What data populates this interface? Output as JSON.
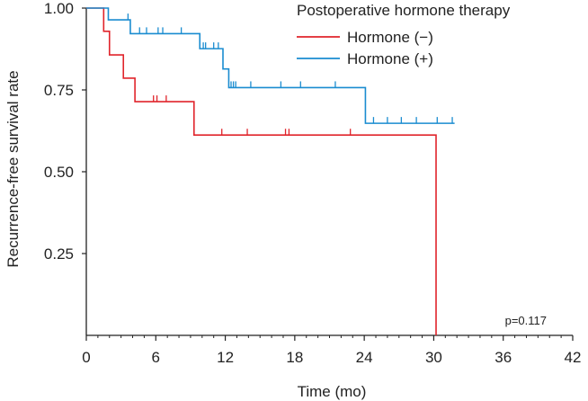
{
  "chart_data": {
    "type": "line",
    "subtype": "kaplan-meier",
    "title": "",
    "xlabel": "Time (mo)",
    "ylabel": "Recurrence-free survival rate",
    "xlim": [
      0,
      42
    ],
    "ylim": [
      0,
      1.0
    ],
    "x_ticks": [
      0,
      6,
      12,
      18,
      24,
      30,
      36,
      42
    ],
    "y_ticks": [
      0.25,
      0.5,
      0.75,
      1.0
    ],
    "x_tick_labels": [
      "0",
      "6",
      "12",
      "18",
      "24",
      "30",
      "36",
      "42"
    ],
    "y_tick_labels": [
      "0.25",
      "0.50",
      "0.75",
      "1.00"
    ],
    "grid": false,
    "legend": {
      "title": "Postoperative hormone therapy",
      "position": "top-right"
    },
    "annotation": "p=0.117",
    "series": [
      {
        "name": "Hormone (−)",
        "color": "#e0242b",
        "steps": [
          [
            0,
            1.0
          ],
          [
            1.5,
            0.929
          ],
          [
            2.0,
            0.857
          ],
          [
            3.2,
            0.786
          ],
          [
            4.2,
            0.714
          ],
          [
            9.3,
            0.612
          ],
          [
            30.2,
            0.0
          ]
        ],
        "end_x": 30.2,
        "censored": [
          [
            5.8,
            0.714
          ],
          [
            6.1,
            0.714
          ],
          [
            6.9,
            0.714
          ],
          [
            11.7,
            0.612
          ],
          [
            13.9,
            0.612
          ],
          [
            17.2,
            0.612
          ],
          [
            17.5,
            0.612
          ],
          [
            22.8,
            0.612
          ]
        ]
      },
      {
        "name": "Hormone (+)",
        "color": "#1a8cd0",
        "steps": [
          [
            0,
            1.0
          ],
          [
            1.9,
            0.964
          ],
          [
            3.8,
            0.922
          ],
          [
            9.8,
            0.876
          ],
          [
            11.8,
            0.814
          ],
          [
            12.3,
            0.757
          ],
          [
            24.1,
            0.648
          ]
        ],
        "end_x": 31.8,
        "censored": [
          [
            3.6,
            0.964
          ],
          [
            4.6,
            0.922
          ],
          [
            5.2,
            0.922
          ],
          [
            6.2,
            0.922
          ],
          [
            6.6,
            0.922
          ],
          [
            8.2,
            0.922
          ],
          [
            10.1,
            0.876
          ],
          [
            10.3,
            0.876
          ],
          [
            11.0,
            0.876
          ],
          [
            11.4,
            0.876
          ],
          [
            12.5,
            0.757
          ],
          [
            12.7,
            0.757
          ],
          [
            12.9,
            0.757
          ],
          [
            14.2,
            0.757
          ],
          [
            16.8,
            0.757
          ],
          [
            18.5,
            0.757
          ],
          [
            21.5,
            0.757
          ],
          [
            24.8,
            0.648
          ],
          [
            26.0,
            0.648
          ],
          [
            27.2,
            0.648
          ],
          [
            28.5,
            0.648
          ],
          [
            30.3,
            0.648
          ],
          [
            31.6,
            0.648
          ]
        ]
      }
    ]
  }
}
